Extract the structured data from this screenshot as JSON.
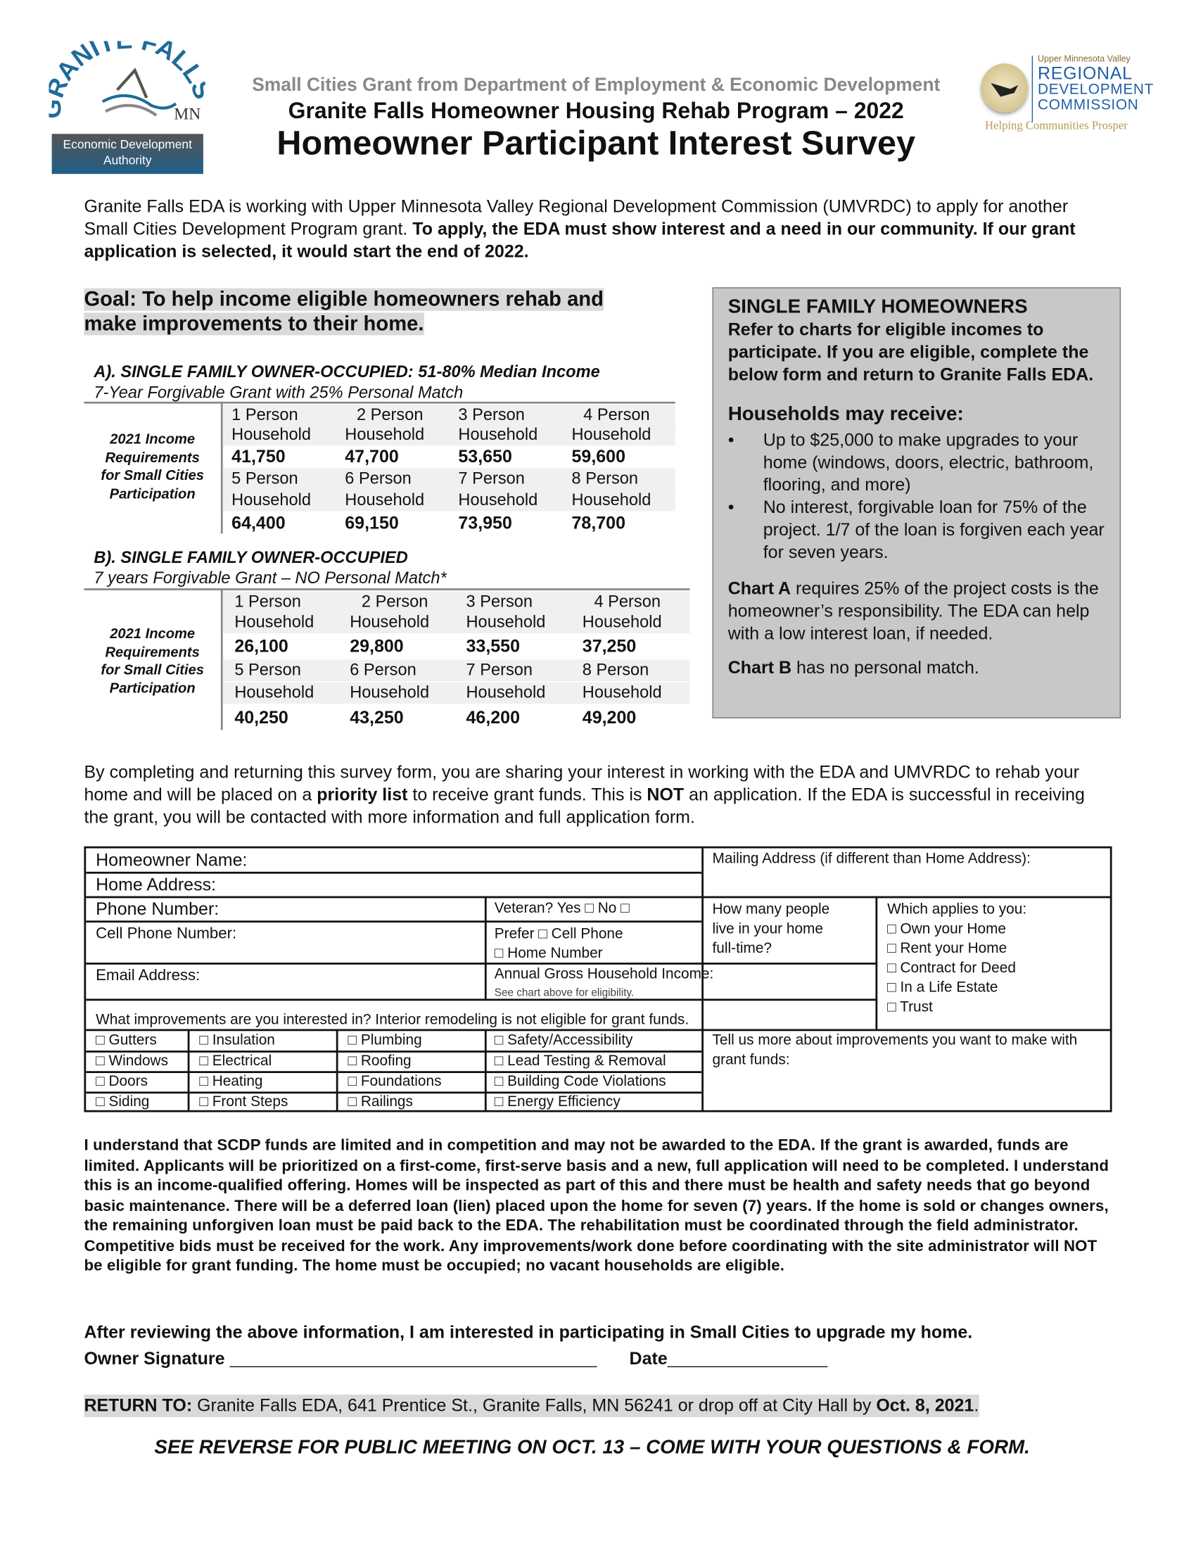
{
  "logos": {
    "left": {
      "text": "GRANITE FALLS",
      "state": "MN",
      "sub1": "Economic Development",
      "sub2": "Authority",
      "color": "#1f6b9a"
    },
    "right": {
      "top": "Upper Minnesota Valley",
      "l1": "REGIONAL",
      "l2": "DEVELOPMENT",
      "l3": "COMMISSION",
      "tagline": "Helping Communities Prosper",
      "color": "#1f5fa8",
      "tagline_color": "#b89a50"
    }
  },
  "header": {
    "subtitle": "Small Cities Grant from Department of Employment & Economic Development",
    "program": "Granite Falls Homeowner Housing Rehab Program – 2022",
    "title": "Homeowner Participant Interest Survey"
  },
  "intro": {
    "text": "Granite Falls EDA is working with Upper Minnesota Valley Regional Development Commission (UMVRDC) to apply for another Small Cities Development Program grant. ",
    "bold": "To apply, the EDA must show interest and a need in our community. If our grant application is selected, it would start the end of 2022."
  },
  "goal": "Goal: To help income eligible homeowners rehab and make improvements to their home.",
  "chart_a": {
    "heading": "A). SINGLE FAMILY OWNER-OCCUPIED:",
    "heading_note": " 51-80% Median Income",
    "sub": "7-Year Forgivable Grant with 25% Personal Match",
    "label": [
      "2021 Income",
      "Requirements",
      "for Small Cities",
      "Participation"
    ],
    "sizes": [
      "1 Person",
      "2 Person",
      "3 Person",
      "4 Person",
      "5 Person",
      "6 Person",
      "7 Person",
      "8 Person"
    ],
    "household": "Household",
    "values": [
      "41,750",
      "47,700",
      "53,650",
      "59,600",
      "64,400",
      "69,150",
      "73,950",
      "78,700"
    ]
  },
  "chart_b": {
    "heading": "B). SINGLE FAMILY OWNER-OCCUPIED",
    "sub": "7 years Forgivable Grant – NO Personal Match*",
    "label": [
      "2021 Income",
      "Requirements",
      "for Small Cities",
      "Participation"
    ],
    "sizes": [
      "1 Person",
      "2 Person",
      "3 Person",
      "4 Person",
      "5 Person",
      "6 Person",
      "7 Person",
      "8 Person"
    ],
    "household": "Household",
    "values": [
      "26,100",
      "29,800",
      "33,550",
      "37,250",
      "40,250",
      "43,250",
      "46,200",
      "49,200"
    ]
  },
  "sidebox": {
    "title": "SINGLE FAMILY HOMEOWNERS",
    "intro": "Refer to charts for eligible incomes to participate. If you are eligible, complete the below form and return to Granite Falls EDA.",
    "may": "Households may receive:",
    "bullets": [
      "Up to $25,000 to make upgrades to your home (windows, doors, electric, bathroom, flooring, and more)",
      "No interest, forgivable loan for 75% of the project. 1/7 of the loan is forgiven each year for seven years."
    ],
    "charta_b": "Chart A",
    "charta": " requires 25% of the project costs is the homeowner’s responsibility. The EDA can help with a low interest loan, if needed.",
    "chartb_b": "Chart B",
    "chartb": " has no personal match.",
    "bg": "#c8c8c8"
  },
  "para": {
    "t1": "By completing and returning this survey form, you are sharing your interest in working with the EDA and UMVRDC to rehab your home and will be placed on a ",
    "b1": "priority list",
    "t2": " to receive grant funds. This is ",
    "b2": "NOT",
    "t3": " an application. If the EDA is successful in receiving the grant, you will be contacted with more information and full application form."
  },
  "form": {
    "name": "Homeowner Name:",
    "address": "Home Address:",
    "mailing": "Mailing Address (if different than Home Address):",
    "phone": "Phone Number:",
    "veteran": "Veteran? Yes □ No □",
    "cell": "Cell Phone Number:",
    "prefer1": "Prefer □ Cell Phone",
    "prefer2": "□ Home Number",
    "people": [
      "How many people",
      "live in your home",
      "full-time?"
    ],
    "applies": "Which applies to you:",
    "applies_opts": [
      "□ Own your Home",
      "□ Rent your Home",
      "□ Contract for Deed",
      "□ In a Life Estate",
      "□ Trust"
    ],
    "email": "Email Address:",
    "income": "Annual Gross Household Income:",
    "income_note": "See chart above for eligibility.",
    "improvements": "What improvements are you interested in? Interior remodeling is not eligible for grant funds.",
    "options": [
      [
        "□ Gutters",
        "□ Insulation",
        "□ Plumbing",
        "□ Safety/Accessibility"
      ],
      [
        "□ Windows",
        "□ Electrical",
        "□ Roofing",
        "□ Lead Testing & Removal"
      ],
      [
        "□ Doors",
        "□ Heating",
        "□ Foundations",
        "□ Building Code Violations"
      ],
      [
        "□ Siding",
        "□ Front Steps",
        "□ Railings",
        "□ Energy Efficiency"
      ]
    ],
    "tell": "Tell us more about improvements you want to make with grant funds:"
  },
  "disclaimer": "I understand that SCDP funds are limited and in competition and may not be awarded to the EDA. If the grant is awarded, funds are limited. Applicants will be prioritized on a first-come, first-serve basis and a new, full application will need to be completed. I understand this is an income-qualified offering. Homes will be inspected as part of this and there must be health and safety needs that go beyond basic maintenance. There will be a deferred loan (lien) placed upon the home for seven (7) years. If the home is sold or changes owners, the remaining unforgiven loan must be paid back to the EDA. The rehabilitation must be coordinated through the field administrator. Competitive bids must be received for the work.  Any improvements/work done before coordinating with the site administrator will NOT be eligible for grant funding. The home must be occupied; no vacant households are eligible.",
  "interest": "After reviewing the above information, I am interested in participating in Small Cities to upgrade my home.",
  "signature": "Owner Signature",
  "date": "Date",
  "return": {
    "b": "RETURN TO:",
    "t": " Granite Falls EDA, 641 Prentice St., Granite Falls, MN 56241 or drop off at City Hall by ",
    "d": "Oct. 8, 2021",
    "end": "."
  },
  "footer": "SEE REVERSE FOR PUBLIC MEETING ON OCT. 13 – COME WITH YOUR QUESTIONS & FORM."
}
